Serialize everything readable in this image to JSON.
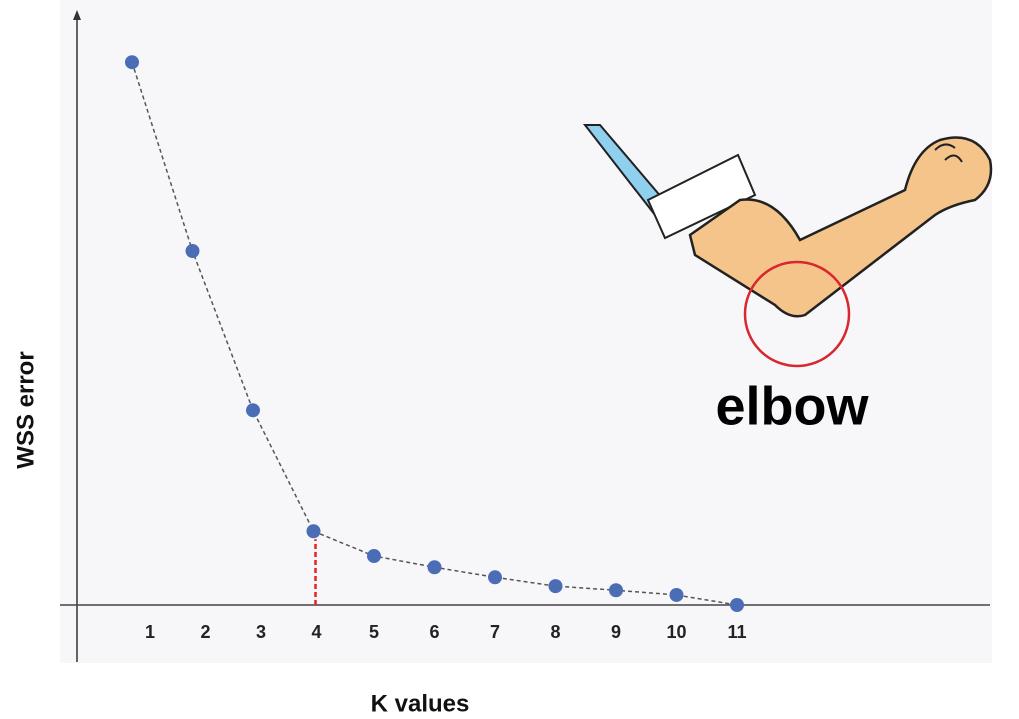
{
  "chart_data": {
    "type": "line",
    "x_label": "K values",
    "y_label": "WSS error",
    "annotation": "elbow",
    "categories": [
      "1",
      "2",
      "3",
      "4",
      "5",
      "6",
      "7",
      "8",
      "9",
      "10",
      "11"
    ],
    "values": [
      92,
      60,
      33,
      12.5,
      8.3,
      6.4,
      4.7,
      3.2,
      2.5,
      1.7,
      0
    ],
    "color": "#4a6db5",
    "line_color": "#555555",
    "highlight_color": "#e8221c",
    "ylim": [
      0,
      100
    ]
  }
}
